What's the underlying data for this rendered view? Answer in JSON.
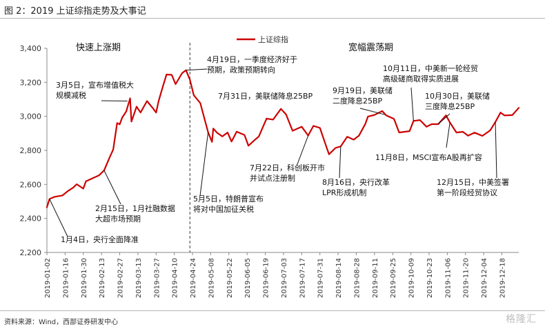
{
  "figure": {
    "title": "图 2：2019 上证综指走势及大事记",
    "source": "资料来源：Wind，西部证券研发中心",
    "watermark": "格隆汇"
  },
  "colors": {
    "line": "#cc0000",
    "axis": "#888888",
    "divider": "#333333"
  },
  "chart_data": {
    "type": "line",
    "title": "",
    "xlabel": "",
    "ylabel": "",
    "ylim": [
      2200,
      3400
    ],
    "yticks": [
      "2,200",
      "2,400",
      "2,600",
      "2,800",
      "3,000",
      "3,200",
      "3,400"
    ],
    "ytick_values": [
      2200,
      2400,
      2600,
      2800,
      3000,
      3200,
      3400
    ],
    "xticks": [
      "2019-01-02",
      "2019-01-16",
      "2019-01-30",
      "2019-02-13",
      "2019-02-27",
      "2019-03-13",
      "2019-03-27",
      "2019-04-10",
      "2019-04-24",
      "2019-05-08",
      "2019-05-22",
      "2019-06-05",
      "2019-06-19",
      "2019-07-03",
      "2019-07-17",
      "2019-07-31",
      "2019-08-14",
      "2019-08-28",
      "2019-09-11",
      "2019-09-25",
      "2019-10-09",
      "2019-10-23",
      "2019-11-06",
      "2019-11-20",
      "2019-12-04",
      "2019-12-18"
    ],
    "legend": "top-center",
    "grid": false,
    "series": [
      {
        "name": "上证综指",
        "x": [
          "2019-01-02",
          "2019-01-04",
          "2019-01-08",
          "2019-01-14",
          "2019-01-18",
          "2019-01-22",
          "2019-01-25",
          "2019-01-30",
          "2019-02-01",
          "2019-02-11",
          "2019-02-15",
          "2019-02-19",
          "2019-02-22",
          "2019-02-25",
          "2019-02-27",
          "2019-03-01",
          "2019-03-04",
          "2019-03-07",
          "2019-03-08",
          "2019-03-12",
          "2019-03-15",
          "2019-03-20",
          "2019-03-25",
          "2019-03-27",
          "2019-03-29",
          "2019-04-01",
          "2019-04-04",
          "2019-04-08",
          "2019-04-11",
          "2019-04-16",
          "2019-04-19",
          "2019-04-22",
          "2019-04-25",
          "2019-04-30",
          "2019-05-06",
          "2019-05-09",
          "2019-05-10",
          "2019-05-13",
          "2019-05-17",
          "2019-05-21",
          "2019-05-24",
          "2019-05-28",
          "2019-06-03",
          "2019-06-06",
          "2019-06-11",
          "2019-06-14",
          "2019-06-20",
          "2019-06-25",
          "2019-07-01",
          "2019-07-05",
          "2019-07-10",
          "2019-07-17",
          "2019-07-22",
          "2019-07-26",
          "2019-07-31",
          "2019-08-05",
          "2019-08-07",
          "2019-08-12",
          "2019-08-16",
          "2019-08-21",
          "2019-08-26",
          "2019-08-30",
          "2019-09-04",
          "2019-09-06",
          "2019-09-11",
          "2019-09-17",
          "2019-09-20",
          "2019-09-26",
          "2019-09-30",
          "2019-10-08",
          "2019-10-11",
          "2019-10-16",
          "2019-10-21",
          "2019-10-25",
          "2019-10-30",
          "2019-11-05",
          "2019-11-08",
          "2019-11-13",
          "2019-11-18",
          "2019-11-22",
          "2019-11-27",
          "2019-12-03",
          "2019-12-09",
          "2019-12-13",
          "2019-12-17",
          "2019-12-20",
          "2019-12-26",
          "2019-12-31"
        ],
        "values": [
          2465,
          2514,
          2527,
          2535,
          2560,
          2580,
          2601,
          2575,
          2618,
          2653,
          2682,
          2754,
          2805,
          2961,
          2953,
          2994,
          3028,
          3106,
          2969,
          3057,
          3022,
          3090,
          3043,
          3022,
          3091,
          3170,
          3246,
          3244,
          3189,
          3254,
          3271,
          3215,
          3124,
          3078,
          2906,
          2850,
          2928,
          2903,
          2882,
          2905,
          2852,
          2910,
          2890,
          2827,
          2862,
          2881,
          2987,
          2981,
          3044,
          3011,
          2915,
          2939,
          2887,
          2944,
          2932,
          2821,
          2777,
          2814,
          2823,
          2880,
          2863,
          2886,
          2957,
          2999,
          3008,
          3031,
          3006,
          2985,
          2905,
          2913,
          2973,
          2978,
          2939,
          2954,
          2954,
          3006,
          2964,
          2905,
          2909,
          2886,
          2904,
          2885,
          2917,
          2967,
          3022,
          3005,
          3007,
          3050
        ]
      }
    ],
    "annotations": [
      {
        "lines": [
          "3月5日，宣布增值税大",
          "规模减税"
        ]
      },
      {
        "lines": [
          "4月19日，一季度经济好于",
          "预期，政策预期转向"
        ]
      },
      {
        "lines": [
          "7月31日，美联储降息25BP"
        ]
      },
      {
        "lines": [
          "9月19日，美联储",
          "二度降息25BP"
        ]
      },
      {
        "lines": [
          "10月11日，中美新一轮经贸",
          "高级磋商取得实质进展"
        ]
      },
      {
        "lines": [
          "10月30日，美联储",
          "三度降息25BP"
        ]
      },
      {
        "lines": [
          "7月22日，科创板开市",
          "并试点注册制"
        ]
      },
      {
        "lines": [
          "8月16日，央行改革",
          "LPR形成机制"
        ]
      },
      {
        "lines": [
          "11月8日，MSCI宣布A股再扩容"
        ]
      },
      {
        "lines": [
          "12月15日，中美签署",
          "第一阶段经贸协议"
        ]
      },
      {
        "lines": [
          "5月5日，特朗普宣布",
          "将对中国加征关税"
        ]
      },
      {
        "lines": [
          "2月15日，1月社融数据",
          "大超市场预期"
        ]
      },
      {
        "lines": [
          "1月4日，央行全面降准"
        ]
      }
    ],
    "phases": [
      "快速上涨期",
      "宽幅震荡期"
    ]
  }
}
